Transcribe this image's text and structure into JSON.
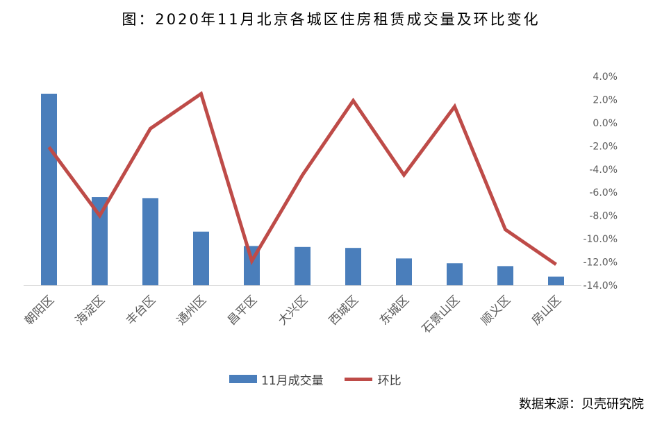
{
  "title": "图：2020年11月北京各城区住房租赁成交量及环比变化",
  "source": "数据来源：贝壳研究院",
  "colors": {
    "bar": "#4a7ebb",
    "line": "#be4b48"
  },
  "chart_data": {
    "type": "bar",
    "categories": [
      "朝阳区",
      "海淀区",
      "丰台区",
      "通州区",
      "昌平区",
      "大兴区",
      "西城区",
      "东城区",
      "石景山区",
      "顺义区",
      "房山区"
    ],
    "series": [
      {
        "name": "11月成交量",
        "type": "bar",
        "axis": "left",
        "values": [
          100,
          46,
          45.5,
          28,
          20.5,
          20,
          19.5,
          14,
          11.5,
          10,
          4.5
        ]
      },
      {
        "name": "环比",
        "type": "line",
        "axis": "right",
        "values": [
          -2.1,
          -8.0,
          -0.5,
          2.5,
          -11.9,
          -4.5,
          1.9,
          -4.5,
          1.4,
          -9.2,
          -12.2
        ]
      }
    ],
    "left_axis": {
      "ylim": [
        0,
        100
      ],
      "visible": false
    },
    "right_axis": {
      "ylim": [
        -14,
        4
      ],
      "ticks": [
        "4.0%",
        "2.0%",
        "0.0%",
        "-2.0%",
        "-4.0%",
        "-6.0%",
        "-8.0%",
        "-10.0%",
        "-12.0%",
        "-14.0%"
      ]
    },
    "grid": false,
    "legend_position": "bottom"
  }
}
